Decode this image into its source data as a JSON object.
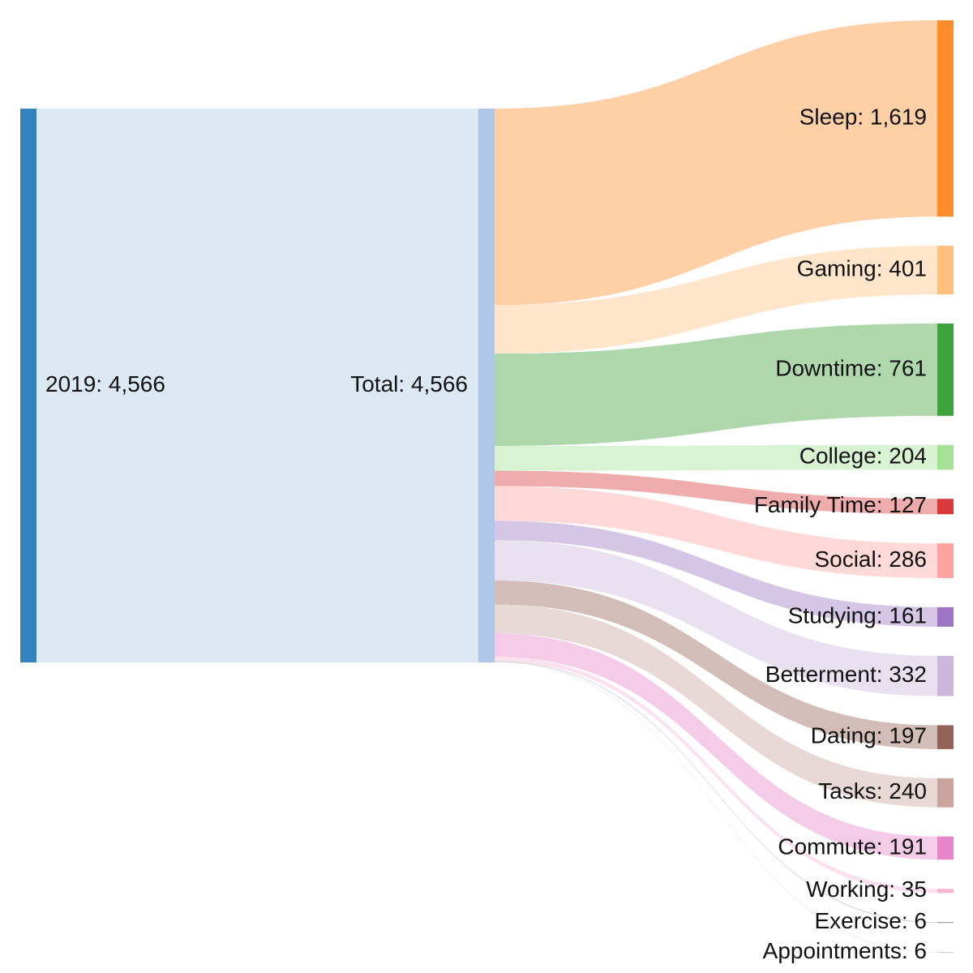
{
  "chart_data": {
    "type": "sankey",
    "source": {
      "label": "2019: 4,566",
      "value": 4566,
      "color": "#3182bd"
    },
    "middle": {
      "label": "Total: 4,566",
      "value": 4566,
      "color": "#aec7e8"
    },
    "targets": [
      {
        "label": "Sleep: 1,619",
        "value": 1619,
        "color": "#ff8c2a"
      },
      {
        "label": "Gaming: 401",
        "value": 401,
        "color": "#ffc07e"
      },
      {
        "label": "Downtime: 761",
        "value": 761,
        "color": "#3ea33a"
      },
      {
        "label": "College: 204",
        "value": 204,
        "color": "#a3e294"
      },
      {
        "label": "Family Time: 127",
        "value": 127,
        "color": "#d93a3a"
      },
      {
        "label": "Social: 286",
        "value": 286,
        "color": "#ffa4a0"
      },
      {
        "label": "Studying: 161",
        "value": 161,
        "color": "#9c76c3"
      },
      {
        "label": "Betterment: 332",
        "value": 332,
        "color": "#cbb7da"
      },
      {
        "label": "Dating: 197",
        "value": 197,
        "color": "#946156"
      },
      {
        "label": "Tasks: 240",
        "value": 240,
        "color": "#c9a59d"
      },
      {
        "label": "Commute: 191",
        "value": 191,
        "color": "#e686c8"
      },
      {
        "label": "Working: 35",
        "value": 35,
        "color": "#f5b8d3"
      },
      {
        "label": "Exercise: 6",
        "value": 6,
        "color": "#8a8a8a"
      },
      {
        "label": "Appointments: 6",
        "value": 6,
        "color": "#cccccc"
      }
    ]
  }
}
